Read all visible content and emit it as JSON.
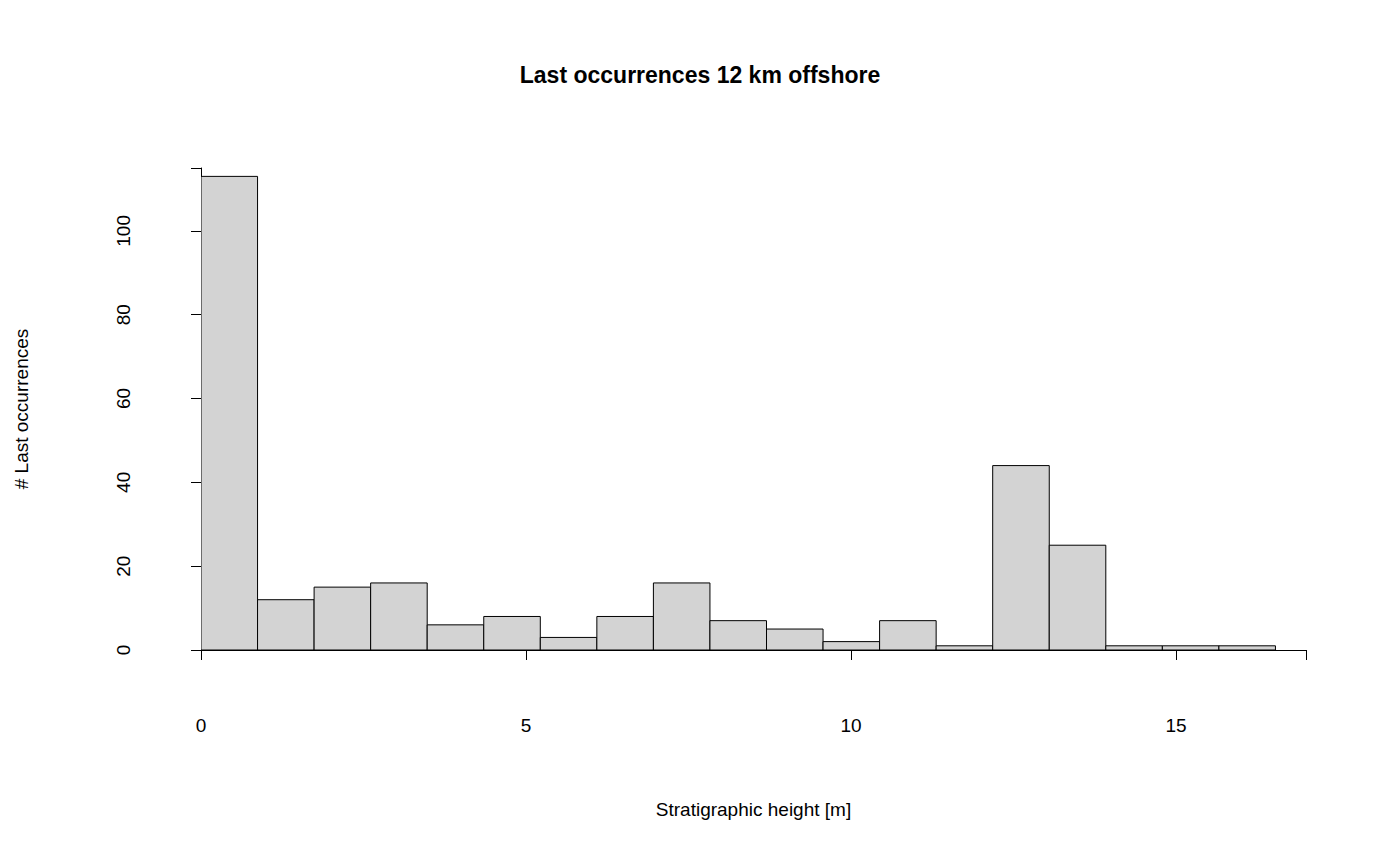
{
  "chart_data": {
    "type": "histogram",
    "title": "Last occurrences 12 km offshore",
    "x_label": "Stratigraphic height [m]",
    "y_label": "# Last occurrences",
    "bins": [
      0,
      0.87,
      1.74,
      2.61,
      3.48,
      4.35,
      5.22,
      6.09,
      6.96,
      7.83,
      8.7,
      9.57,
      10.44,
      11.31,
      12.18,
      13.05,
      13.92,
      14.79,
      15.66,
      16.53
    ],
    "values": [
      113,
      12,
      15,
      16,
      6,
      8,
      3,
      8,
      16,
      7,
      5,
      2,
      7,
      1,
      44,
      25,
      1,
      1,
      1
    ],
    "color": "#d3d3d3",
    "xlim": [
      0,
      17
    ],
    "xticks": [
      0,
      5,
      10,
      15
    ],
    "ylim": [
      0,
      115
    ],
    "yticks": [
      0,
      20,
      40,
      60,
      80,
      100
    ],
    "grid": false
  }
}
